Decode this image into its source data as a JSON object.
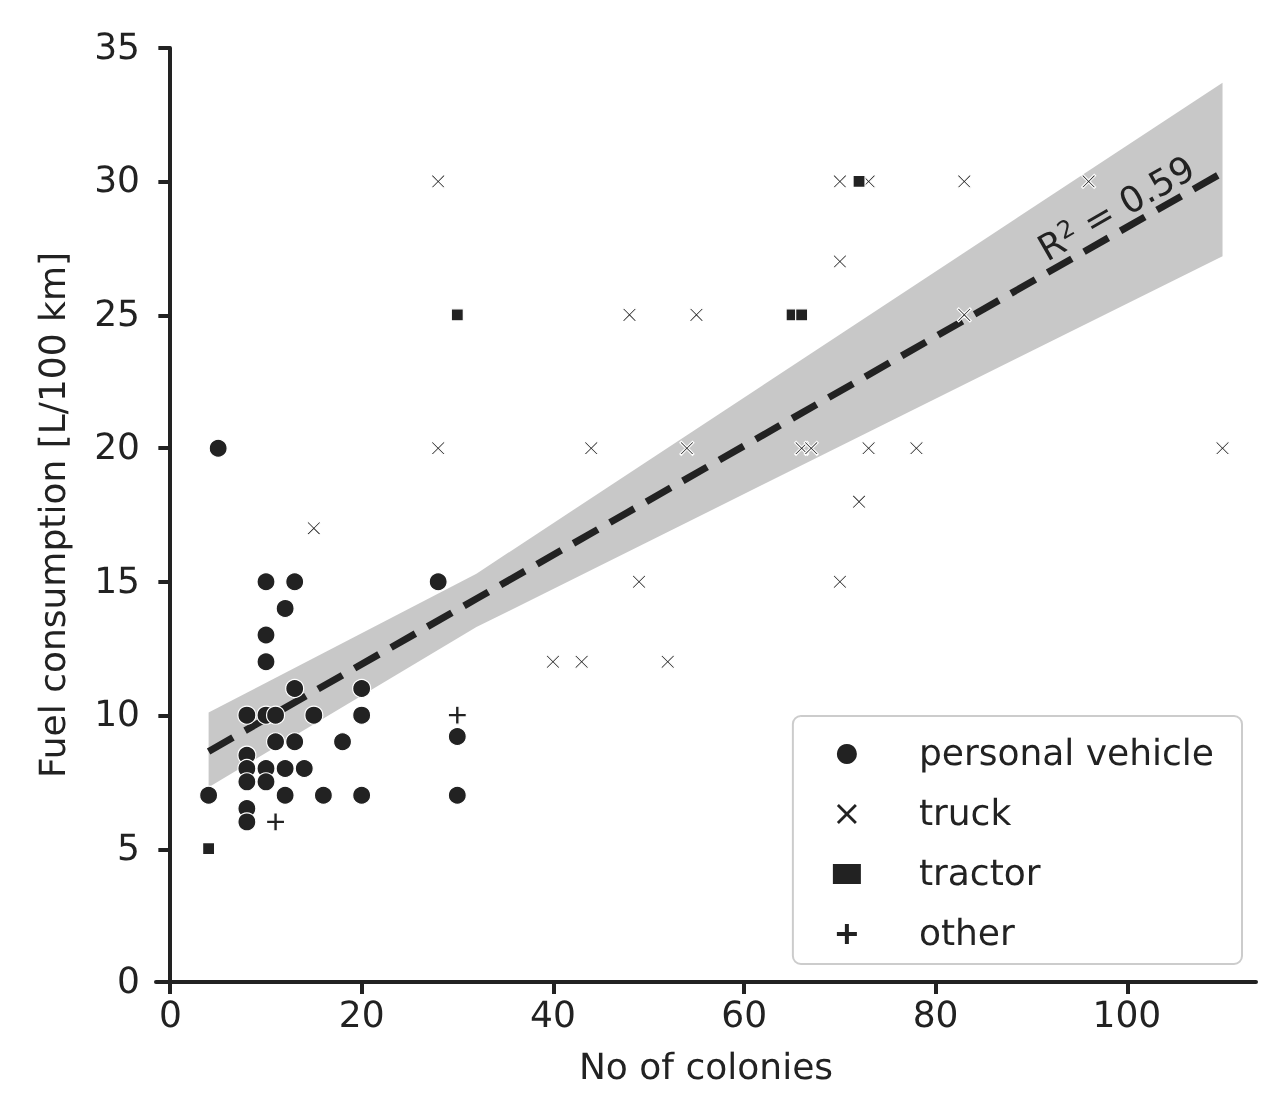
{
  "chart_data": {
    "type": "scatter",
    "xlabel": "No of colonies",
    "ylabel": "Fuel consumption [L/100 km]",
    "xlim": [
      -1.5,
      113.5
    ],
    "xticks": [
      0,
      20,
      40,
      60,
      80,
      100
    ],
    "ylim": [
      0,
      35
    ],
    "yticks": [
      0,
      5,
      10,
      15,
      20,
      25,
      30,
      35
    ],
    "grid": false,
    "legend": "bottom right",
    "annotations": [
      {
        "text": "R$^{2}$ = 0.59",
        "x": 100,
        "y": 28.3
      }
    ],
    "series": [
      {
        "name": "personal vehicle",
        "color": "#222222",
        "marker": "circle",
        "x": [
          4,
          5,
          8,
          10,
          11,
          10,
          13,
          15,
          20,
          20,
          11,
          13,
          18,
          8,
          8,
          10,
          12,
          14,
          8,
          10,
          12,
          16,
          20,
          30,
          8,
          8,
          30,
          10,
          13,
          12,
          10,
          28
        ],
        "values": [
          7,
          20,
          10,
          10,
          10,
          12,
          11,
          10,
          11,
          10,
          9,
          9,
          9,
          8.5,
          8,
          8,
          8,
          8,
          7.5,
          7.5,
          7,
          7,
          7,
          7,
          6.5,
          6,
          9.2,
          15,
          15,
          14,
          13,
          15
        ]
      },
      {
        "name": "truck",
        "color": "#222222",
        "marker": "cross",
        "x": [
          15,
          28,
          28,
          40,
          43,
          52,
          44,
          48,
          49,
          54,
          55,
          66,
          67,
          70,
          70,
          70,
          72,
          73,
          73,
          78,
          83,
          83,
          96,
          110
        ],
        "values": [
          17,
          20,
          30,
          12,
          12,
          12,
          20,
          25,
          15,
          20,
          25,
          20,
          20,
          30,
          27,
          15,
          18,
          30,
          20,
          20,
          30,
          25,
          30,
          20
        ]
      },
      {
        "name": "tractor",
        "color": "#222222",
        "marker": "square",
        "x": [
          4,
          30,
          65,
          66,
          72
        ],
        "values": [
          5,
          25,
          25,
          25,
          30
        ]
      },
      {
        "name": "other",
        "color": "#222222",
        "marker": "plus",
        "x": [
          11,
          30
        ],
        "values": [
          6,
          10
        ]
      },
      {
        "type": "line",
        "color": "#222222",
        "line_style": "dashed",
        "marker": "none",
        "x": [
          4,
          32,
          110
        ],
        "values": [
          8.64,
          14.36,
          30.33
        ],
        "lower": [
          7.3,
          13.3,
          27.2
        ],
        "upper": [
          10.1,
          15.3,
          33.7
        ]
      }
    ]
  }
}
